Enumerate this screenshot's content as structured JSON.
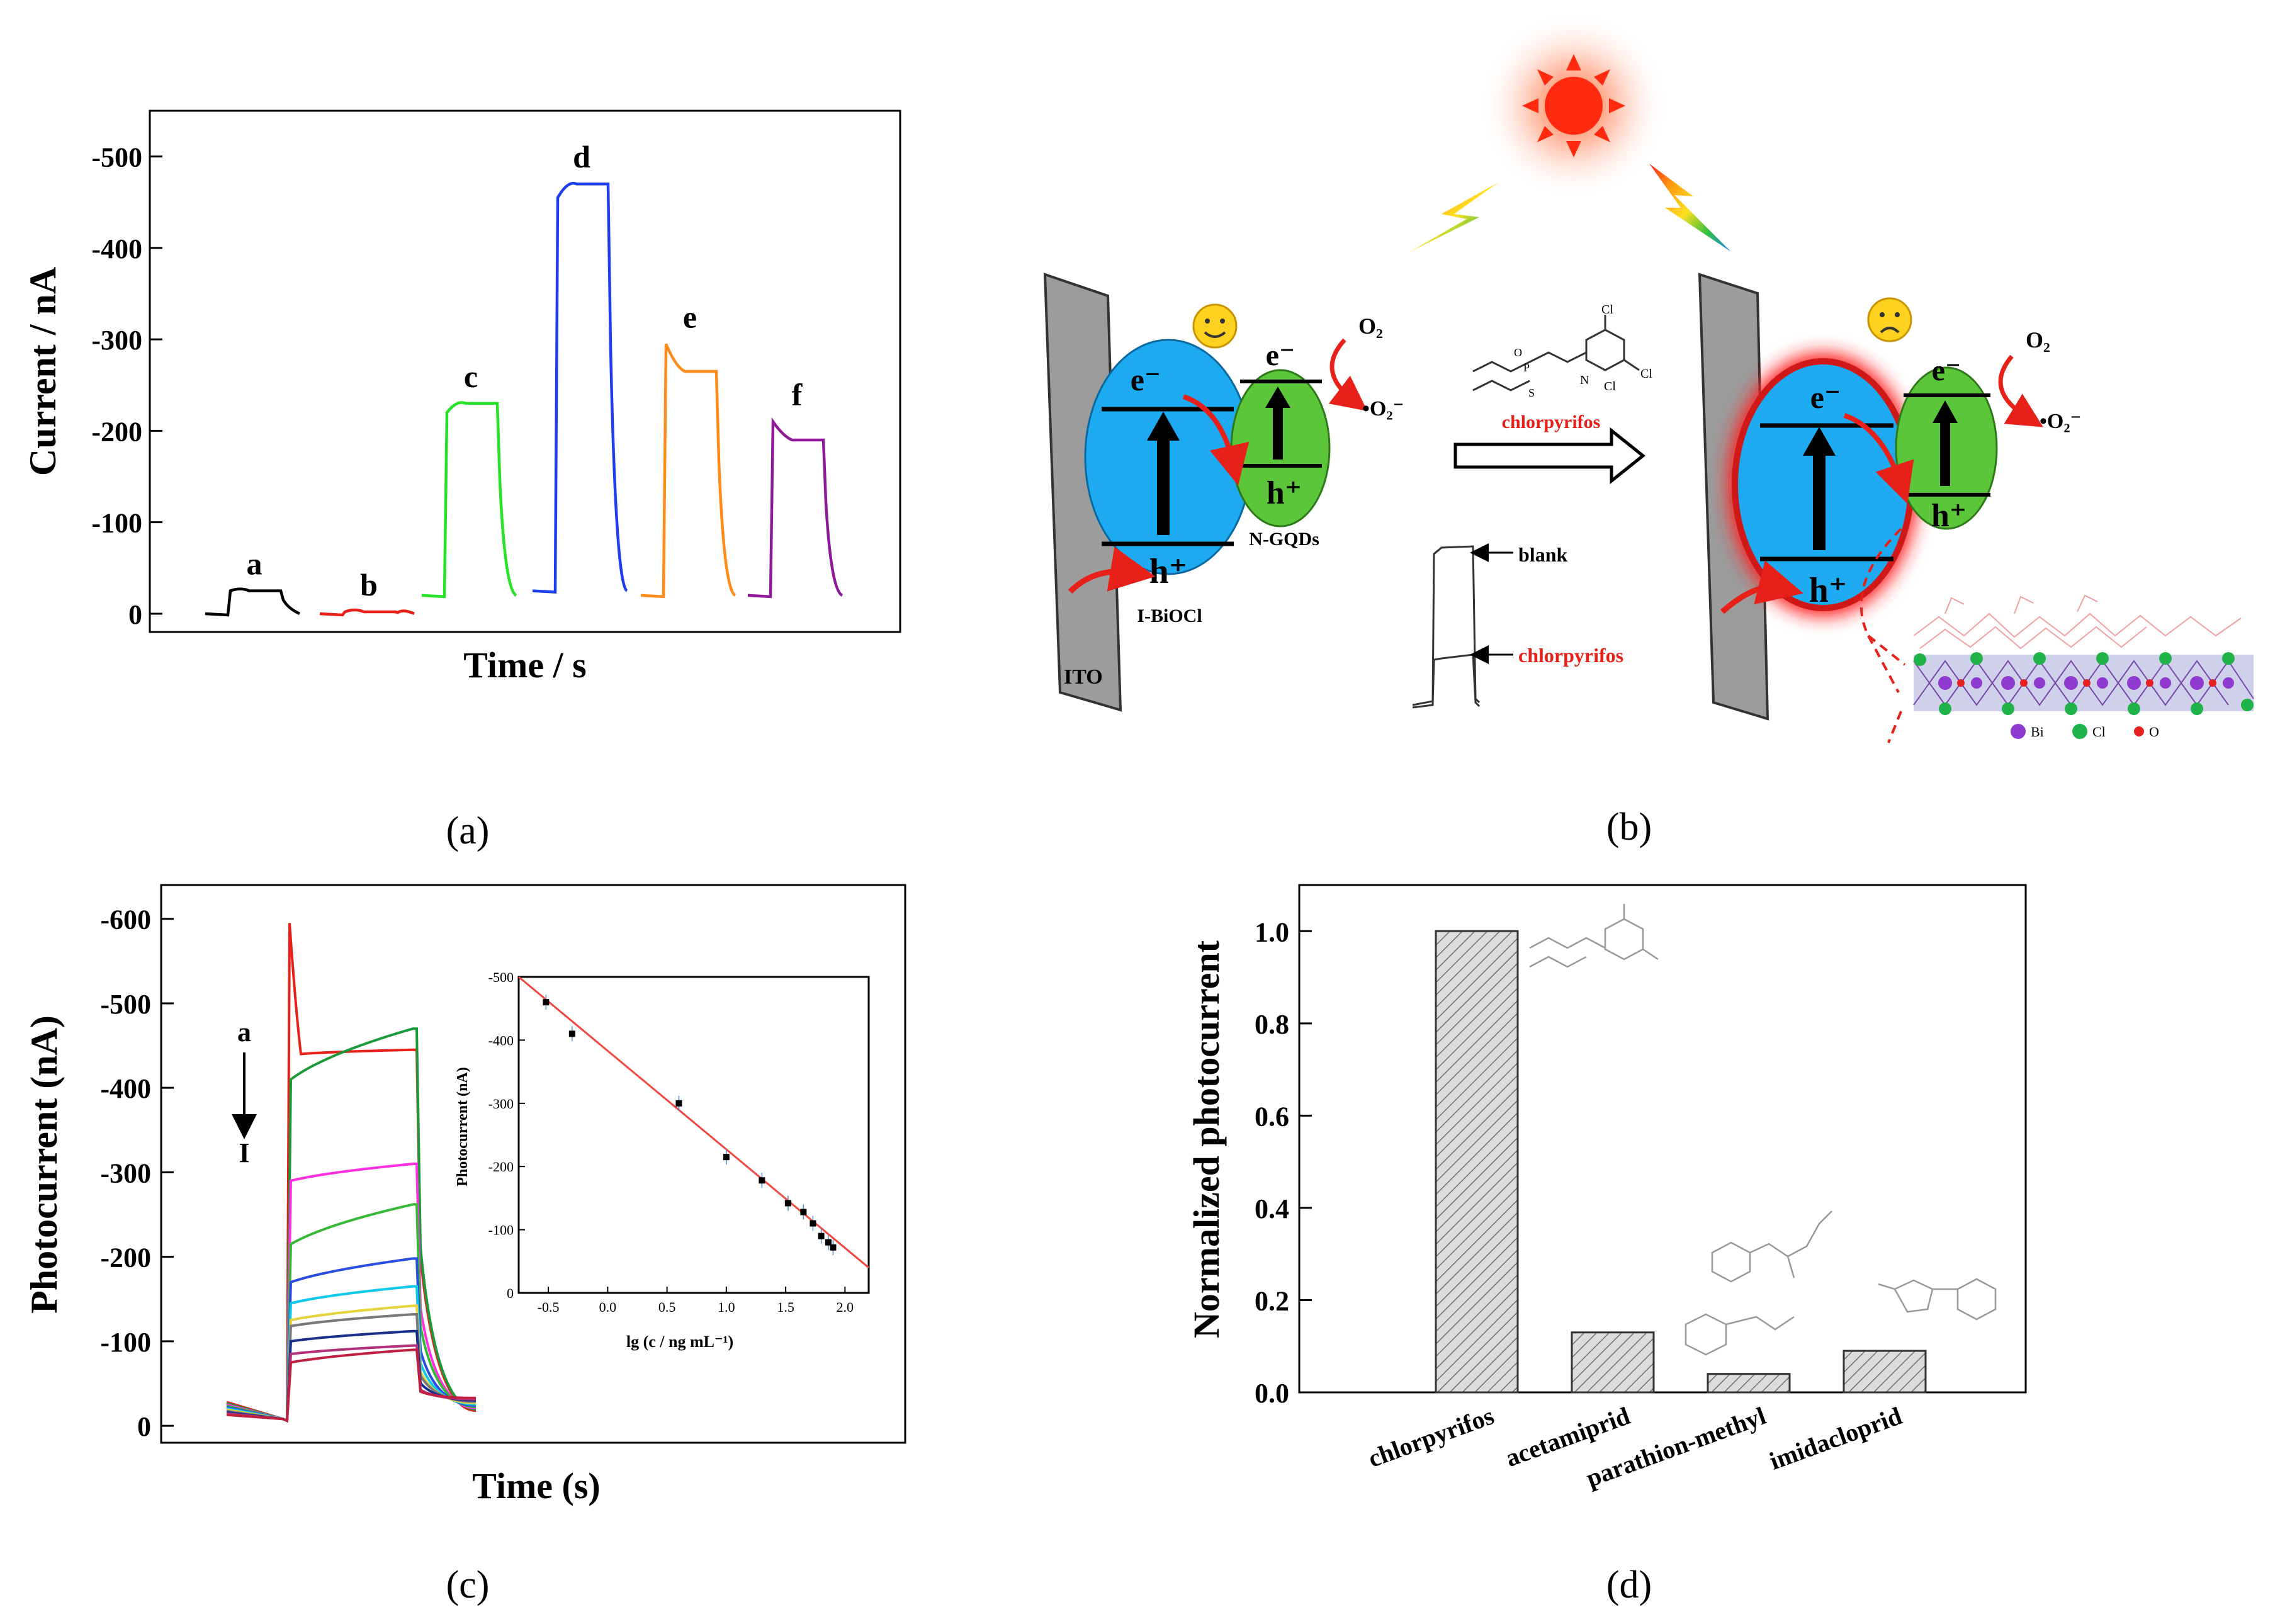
{
  "figure": {
    "panel_labels": [
      "(a)",
      "(b)",
      "(c)",
      "(d)"
    ]
  },
  "colors": {
    "a": "#000000",
    "b": "#e8201a",
    "c": "#27e227",
    "d": "#1f3ef0",
    "e": "#ff8c1a",
    "f": "#8e1a98",
    "fit_line": "#f0483e",
    "electrode": "#9c9c9c",
    "ibiocl": "#1eaaf0",
    "ngqd": "#5cc63a",
    "sun": "#ff2a10",
    "glow": "#ff2020",
    "bar_fill": "#d9d9d9",
    "highlight_text": "#e8201a"
  },
  "chart_data": [
    {
      "panel": "a",
      "type": "line",
      "xlabel": "Time / s",
      "ylabel": "Current / nA",
      "ylim": [
        20,
        -550
      ],
      "y_ticks": [
        0,
        -100,
        -200,
        -300,
        -400,
        -500
      ],
      "y_tick_labels": [
        "0",
        "-100",
        "-200",
        "-300",
        "-400",
        "-500"
      ],
      "series": [
        {
          "name": "a",
          "color": "#000000",
          "baseline": 0,
          "on_start": -25,
          "on_end": -25
        },
        {
          "name": "b",
          "color": "#e8201a",
          "baseline": 0,
          "on_start": -2,
          "on_end": -2
        },
        {
          "name": "c",
          "color": "#27e227",
          "baseline": -20,
          "on_start": -220,
          "on_end": -230
        },
        {
          "name": "d",
          "color": "#1f3ef0",
          "baseline": -25,
          "on_start": -455,
          "on_end": -470
        },
        {
          "name": "e",
          "color": "#ff8c1a",
          "baseline": -20,
          "on_start": -295,
          "on_end": -265
        },
        {
          "name": "f",
          "color": "#8e1a98",
          "baseline": -20,
          "on_start": -210,
          "on_end": -190
        }
      ]
    },
    {
      "panel": "c",
      "type": "line",
      "xlabel": "Time (s)",
      "ylabel": "Photocurrent (nA)",
      "ylim": [
        20,
        -640
      ],
      "y_ticks": [
        0,
        -100,
        -200,
        -300,
        -400,
        -500,
        -600
      ],
      "y_tick_labels": [
        "0",
        "-100",
        "-200",
        "-300",
        "-400",
        "-500",
        "-600"
      ],
      "annotation_top": "a",
      "annotation_bottom": "I",
      "series": [
        {
          "color": "#e8201a",
          "on_start": -440,
          "on_end": -445,
          "spike": -595
        },
        {
          "color": "#1a9a3a",
          "on_start": -410,
          "on_end": -470
        },
        {
          "color": "#ff30e0",
          "on_start": -290,
          "on_end": -310
        },
        {
          "color": "#38b838",
          "on_start": -215,
          "on_end": -262
        },
        {
          "color": "#2b4de0",
          "on_start": -170,
          "on_end": -198
        },
        {
          "color": "#10c8e8",
          "on_start": -145,
          "on_end": -165
        },
        {
          "color": "#e6d23a",
          "on_start": -125,
          "on_end": -142
        },
        {
          "color": "#7a7a7a",
          "on_start": -118,
          "on_end": -132
        },
        {
          "color": "#1a2f8a",
          "on_start": -100,
          "on_end": -112
        },
        {
          "color": "#b0307a",
          "on_start": -85,
          "on_end": -95
        },
        {
          "color": "#c02040",
          "on_start": -75,
          "on_end": -90
        }
      ],
      "inset": {
        "xlabel": "lg (c / ng mL⁻¹)",
        "ylabel": "Photocurrent (nA)",
        "x_ticks": [
          -0.5,
          0.0,
          0.5,
          1.0,
          1.5,
          2.0
        ],
        "x_tick_labels": [
          "-0.5",
          "0.0",
          "0.5",
          "1.0",
          "1.5",
          "2.0"
        ],
        "y_ticks": [
          0,
          -100,
          -200,
          -300,
          -400,
          -500
        ],
        "y_tick_labels": [
          "0",
          "-100",
          "-200",
          "-300",
          "-400",
          "-500"
        ],
        "xlim": [
          -0.75,
          2.2
        ],
        "ylim": [
          0,
          -500
        ],
        "fit_line": [
          [
            -0.75,
            -500
          ],
          [
            2.2,
            -40
          ]
        ],
        "points_x": [
          -0.52,
          -0.3,
          0.6,
          1.0,
          1.3,
          1.52,
          1.65,
          1.73,
          1.8,
          1.86,
          1.9
        ],
        "points_y": [
          -460,
          -410,
          -300,
          -215,
          -178,
          -142,
          -128,
          -110,
          -90,
          -80,
          -72
        ]
      }
    },
    {
      "panel": "d",
      "type": "bar",
      "ylabel": "Normalized photocurrent",
      "categories": [
        "chlorpyrifos",
        "acetamiprid",
        "parathion-methyl",
        "imidacloprid"
      ],
      "values": [
        1.0,
        0.13,
        0.04,
        0.09
      ],
      "ylim": [
        0,
        1.1
      ],
      "y_ticks": [
        0.0,
        0.2,
        0.4,
        0.6,
        0.8,
        1.0
      ],
      "y_tick_labels": [
        "0.0",
        "0.2",
        "0.4",
        "0.6",
        "0.8",
        "1.0"
      ]
    }
  ],
  "diagram": {
    "ito": "ITO",
    "ibiocl": "I-BiOCl",
    "ngqds": "N-GQDs",
    "e_minus": "e⁻",
    "h_plus": "h⁺",
    "o2": "O₂",
    "superoxide": "•O₂⁻",
    "chlorpyrifos": "chlorpyrifos",
    "blank": "blank",
    "chlorpyrifos_trace": "chlorpyrifos",
    "legend_bi": "Bi",
    "legend_cl": "Cl",
    "legend_o": "O",
    "mol_cl": "Cl",
    "mol_n": "N",
    "mol_s": "S",
    "mol_o": "O",
    "mol_p": "P"
  }
}
